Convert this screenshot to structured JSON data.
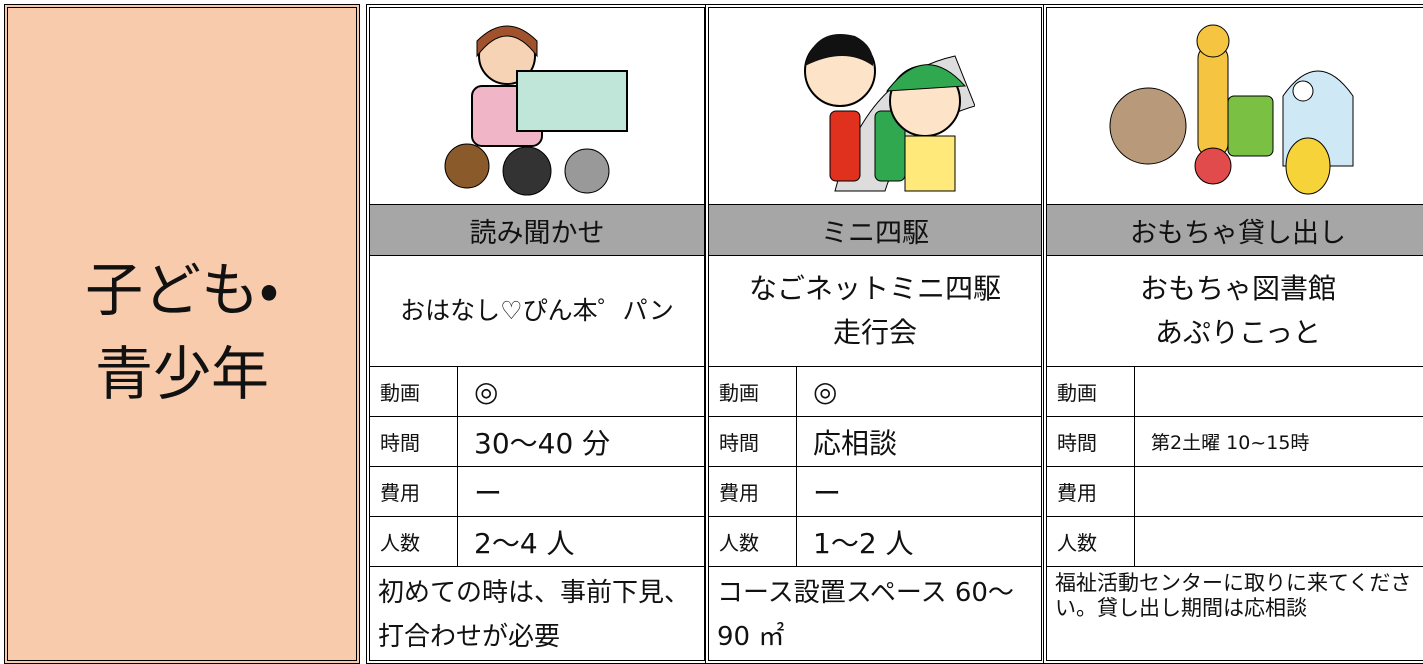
{
  "sidebar": {
    "lines": [
      "子ども・",
      "青少年"
    ]
  },
  "cards": [
    {
      "title": "読み聞かせ",
      "name": [
        "おはなし♡ぴん本゜パン"
      ],
      "rows": [
        {
          "label": "動画",
          "value": "◎"
        },
        {
          "label": "時間",
          "value": "30～40 分"
        },
        {
          "label": "費用",
          "value": "ー"
        },
        {
          "label": "人数",
          "value": "2～4 人"
        }
      ],
      "note": "初めての時は、事前下見、打合わせが必要"
    },
    {
      "title": "ミニ四駆",
      "name": [
        "なごネットミニ四駆",
        "走行会"
      ],
      "rows": [
        {
          "label": "動画",
          "value": "◎"
        },
        {
          "label": "時間",
          "value": "応相談"
        },
        {
          "label": "費用",
          "value": "ー"
        },
        {
          "label": "人数",
          "value": "1～2 人"
        }
      ],
      "note": "コース設置スペース 60～90 ㎡"
    },
    {
      "title": "おもちゃ貸し出し",
      "name": [
        "おもちゃ図書館",
        "あぷりこっと"
      ],
      "rows": [
        {
          "label": "動画"
        },
        {
          "label": "時間",
          "value": "第2土曜 10~15時"
        },
        {
          "label": "費用"
        },
        {
          "label": "人数"
        }
      ],
      "note": "福祉活動センターに取りに来てください。貸し出し期間は応相談"
    }
  ]
}
